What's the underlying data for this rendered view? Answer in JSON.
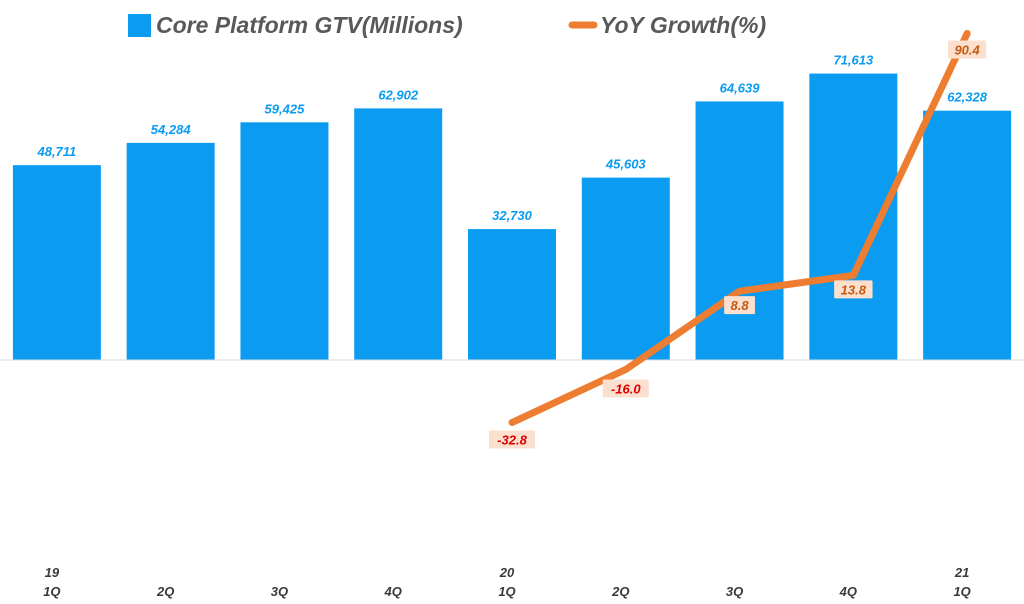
{
  "chart_data": {
    "type": "bar",
    "categories": [
      {
        "year": "19",
        "quarter": "1Q"
      },
      {
        "year": "",
        "quarter": "2Q"
      },
      {
        "year": "",
        "quarter": "3Q"
      },
      {
        "year": "",
        "quarter": "4Q"
      },
      {
        "year": "20",
        "quarter": "1Q"
      },
      {
        "year": "",
        "quarter": "2Q"
      },
      {
        "year": "",
        "quarter": "3Q"
      },
      {
        "year": "",
        "quarter": "4Q"
      },
      {
        "year": "21",
        "quarter": "1Q"
      }
    ],
    "series": [
      {
        "name": "Core Platform GTV(Millions)",
        "type": "bar",
        "color": "#0b9bf0",
        "values": [
          48711,
          54284,
          59425,
          62902,
          32730,
          45603,
          64639,
          71613,
          62328
        ],
        "labels": [
          "48,711",
          "54,284",
          "59,425",
          "62,902",
          "32,730",
          "45,603",
          "64,639",
          "71,613",
          "62,328"
        ]
      },
      {
        "name": "YoY Growth(%)",
        "type": "line",
        "color": "#ed7d31",
        "values": [
          null,
          null,
          null,
          null,
          -32.8,
          -16.0,
          8.8,
          13.8,
          90.4
        ],
        "labels": [
          "",
          "",
          "",
          "",
          "-32.8",
          "-16.0",
          "8.8",
          "13.8",
          "90.4"
        ],
        "label_colors": [
          "",
          "",
          "",
          "",
          "#e00000",
          "#e00000",
          "#c55a11",
          "#c55a11",
          "#c55a11"
        ]
      }
    ],
    "bar_axis_range": [
      -45000,
      90000
    ],
    "line_axis_range": [
      -70,
      101
    ],
    "legend_position": "top"
  }
}
